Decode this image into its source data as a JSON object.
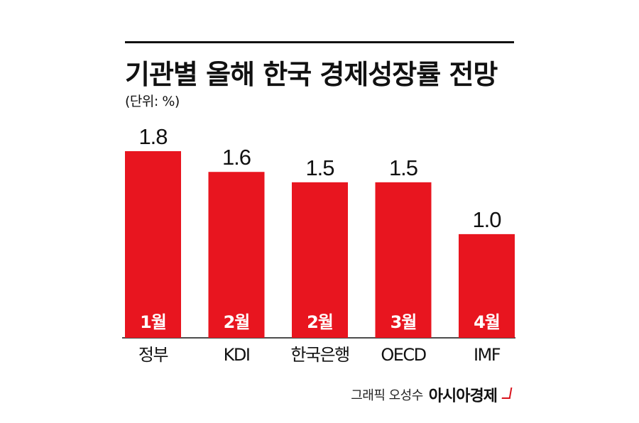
{
  "header": {
    "title": "기관별 올해 한국 경제성장률 전망",
    "unit": "(단위: %)"
  },
  "chart_data": {
    "type": "bar",
    "categories": [
      "정부",
      "KDI",
      "한국은행",
      "OECD",
      "IMF"
    ],
    "values": [
      1.8,
      1.6,
      1.5,
      1.5,
      1.0
    ],
    "value_labels": [
      "1.8",
      "1.6",
      "1.5",
      "1.5",
      "1.0"
    ],
    "bar_inner_labels": [
      "1월",
      "2월",
      "2월",
      "3월",
      "4월"
    ],
    "title": "기관별 올해 한국 경제성장률 전망",
    "ylabel": "(단위: %)",
    "ylim": [
      0,
      1.8
    ],
    "grid": false,
    "bar_color": "#e8151f"
  },
  "footer": {
    "credit": "그래픽 오성수",
    "brand": "아시아경제",
    "brand_color": "#d9121c"
  }
}
